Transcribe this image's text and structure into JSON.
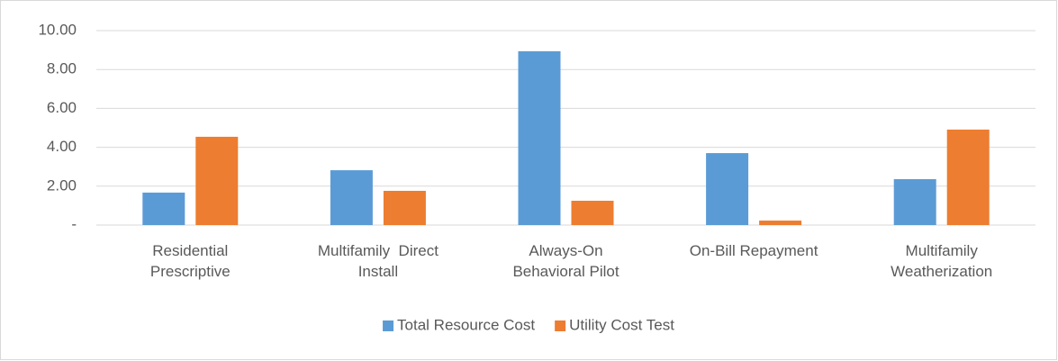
{
  "chart_data": {
    "type": "bar",
    "categories": [
      "Residential\nPrescriptive",
      "Multifamily  Direct\nInstall",
      "Always-On\nBehavioral Pilot",
      "On-Bill Repayment",
      "Multifamily\nWeatherization"
    ],
    "series": [
      {
        "name": "Total Resource Cost",
        "color": "#5b9bd5",
        "values": [
          1.67,
          2.82,
          8.94,
          3.7,
          2.36
        ]
      },
      {
        "name": "Utility Cost Test",
        "color": "#ed7d31",
        "values": [
          4.54,
          1.76,
          1.25,
          0.23,
          4.91
        ]
      }
    ],
    "ylim": [
      0,
      10
    ],
    "yticks": [
      {
        "value": 0,
        "label": "-"
      },
      {
        "value": 2,
        "label": "2.00"
      },
      {
        "value": 4,
        "label": "4.00"
      },
      {
        "value": 6,
        "label": "6.00"
      },
      {
        "value": 8,
        "label": "8.00"
      },
      {
        "value": 10,
        "label": "10.00"
      }
    ],
    "grid": true,
    "legend": "bottom"
  }
}
